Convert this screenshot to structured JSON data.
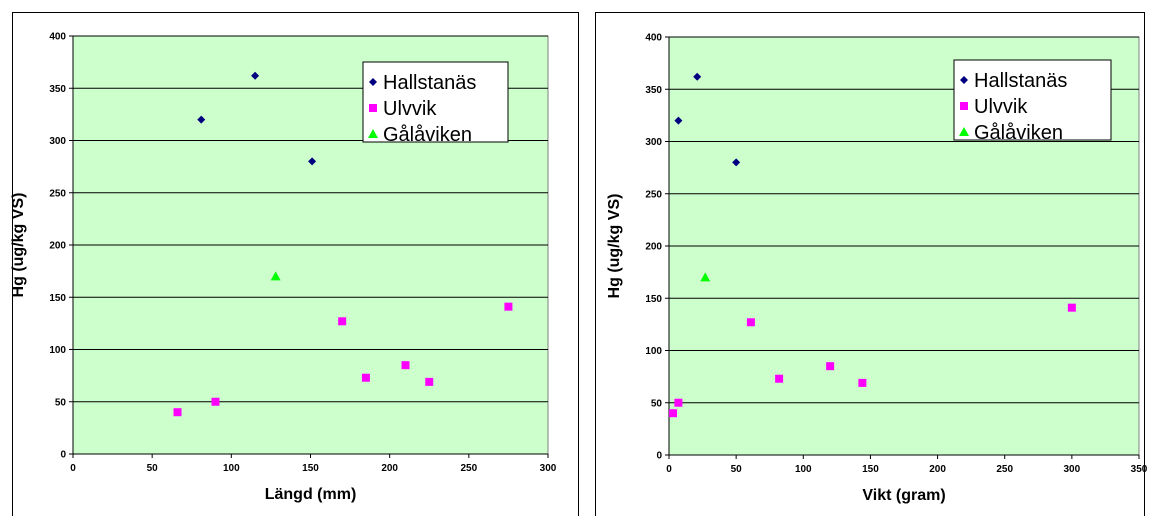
{
  "chart_data": [
    {
      "type": "scatter",
      "title": "",
      "xlabel": "Längd (mm)",
      "ylabel": "Hg (ug/kg VS)",
      "xlim": [
        0,
        300
      ],
      "ylim": [
        0,
        400
      ],
      "xticks": [
        0,
        50,
        100,
        150,
        200,
        250,
        300
      ],
      "yticks": [
        0,
        50,
        100,
        150,
        200,
        250,
        300,
        350,
        400
      ],
      "grid": "horizontal",
      "plot_background": "#ccffcc",
      "legend_position": "top-right",
      "series": [
        {
          "name": "Hallstanäs",
          "marker": "diamond",
          "color": "#000080",
          "points": [
            [
              81,
              320
            ],
            [
              115,
              362
            ],
            [
              151,
              280
            ]
          ]
        },
        {
          "name": "Ulvvik",
          "marker": "square",
          "color": "#ff00ff",
          "points": [
            [
              66,
              40
            ],
            [
              90,
              50
            ],
            [
              170,
              127
            ],
            [
              185,
              73
            ],
            [
              210,
              85
            ],
            [
              225,
              69
            ],
            [
              275,
              141
            ]
          ]
        },
        {
          "name": "Gålåviken",
          "marker": "triangle",
          "color": "#00ff00",
          "points": [
            [
              128,
              170
            ]
          ]
        }
      ]
    },
    {
      "type": "scatter",
      "title": "",
      "xlabel": "Vikt (gram)",
      "ylabel": "Hg (ug/kg VS)",
      "xlim": [
        0,
        350
      ],
      "ylim": [
        0,
        400
      ],
      "xticks": [
        0,
        50,
        100,
        150,
        200,
        250,
        300,
        350
      ],
      "yticks": [
        0,
        50,
        100,
        150,
        200,
        250,
        300,
        350,
        400
      ],
      "grid": "horizontal",
      "plot_background": "#ccffcc",
      "legend_position": "top-right",
      "series": [
        {
          "name": "Hallstanäs",
          "marker": "diamond",
          "color": "#000080",
          "points": [
            [
              7,
              320
            ],
            [
              21,
              362
            ],
            [
              50,
              280
            ]
          ]
        },
        {
          "name": "Ulvvik",
          "marker": "square",
          "color": "#ff00ff",
          "points": [
            [
              3,
              40
            ],
            [
              7,
              50
            ],
            [
              61,
              127
            ],
            [
              82,
              73
            ],
            [
              120,
              85
            ],
            [
              144,
              69
            ],
            [
              300,
              141
            ]
          ]
        },
        {
          "name": "Gålåviken",
          "marker": "triangle",
          "color": "#00ff00",
          "points": [
            [
              27,
              170
            ]
          ]
        }
      ]
    }
  ]
}
